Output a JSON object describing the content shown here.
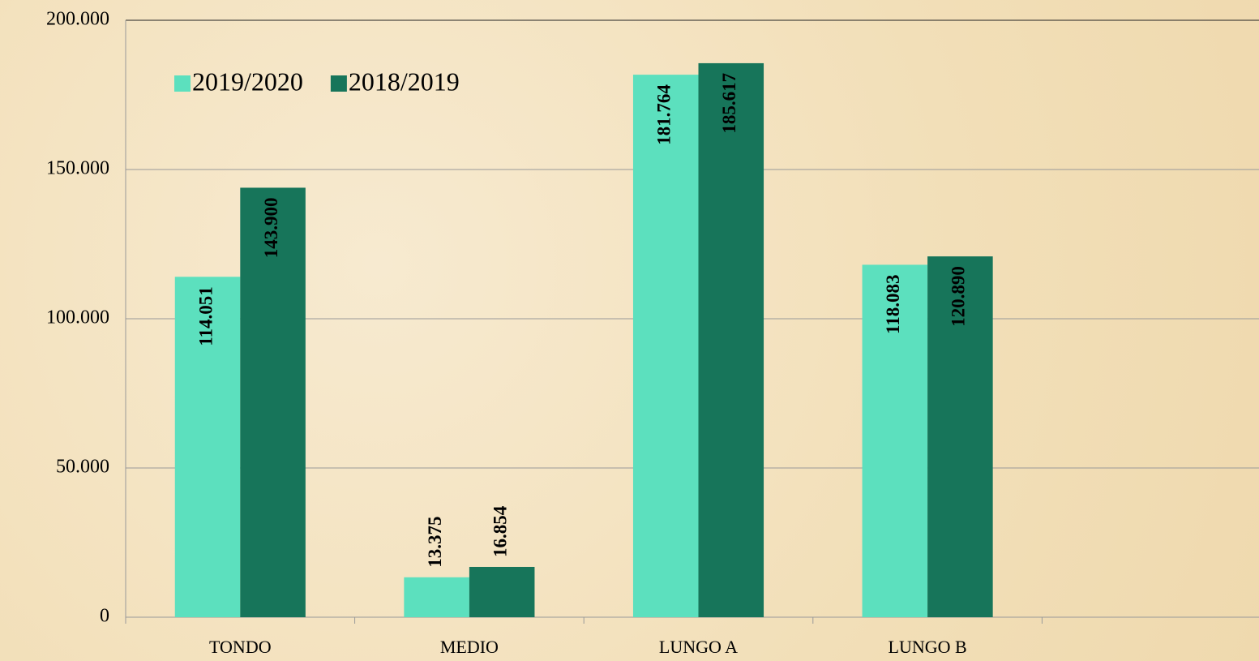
{
  "chart_data": {
    "type": "bar",
    "categories": [
      "TONDO",
      "MEDIO",
      "LUNGO A",
      "LUNGO B",
      null
    ],
    "series": [
      {
        "name": "2019/2020",
        "color": "#5ce0be",
        "values": [
          114051,
          13375,
          181764,
          118083,
          null
        ],
        "value_labels": [
          "114.051",
          "13.375",
          "181.764",
          "118.083",
          null
        ]
      },
      {
        "name": "2018/2019",
        "color": "#17755a",
        "values": [
          143900,
          16854,
          185617,
          120890,
          null
        ],
        "value_labels": [
          "143.900",
          "16.854",
          "185.617",
          "120.890",
          null
        ]
      }
    ],
    "ylim": [
      0,
      200000
    ],
    "yticks": [
      0,
      {
        "value": 50000,
        "label": "50.000"
      },
      {
        "value": 100000,
        "label": "100.000"
      },
      {
        "value": 150000,
        "label": "150.000"
      },
      {
        "value": 200000,
        "label": "200.000"
      }
    ],
    "grid": true,
    "legend": "upper left"
  }
}
